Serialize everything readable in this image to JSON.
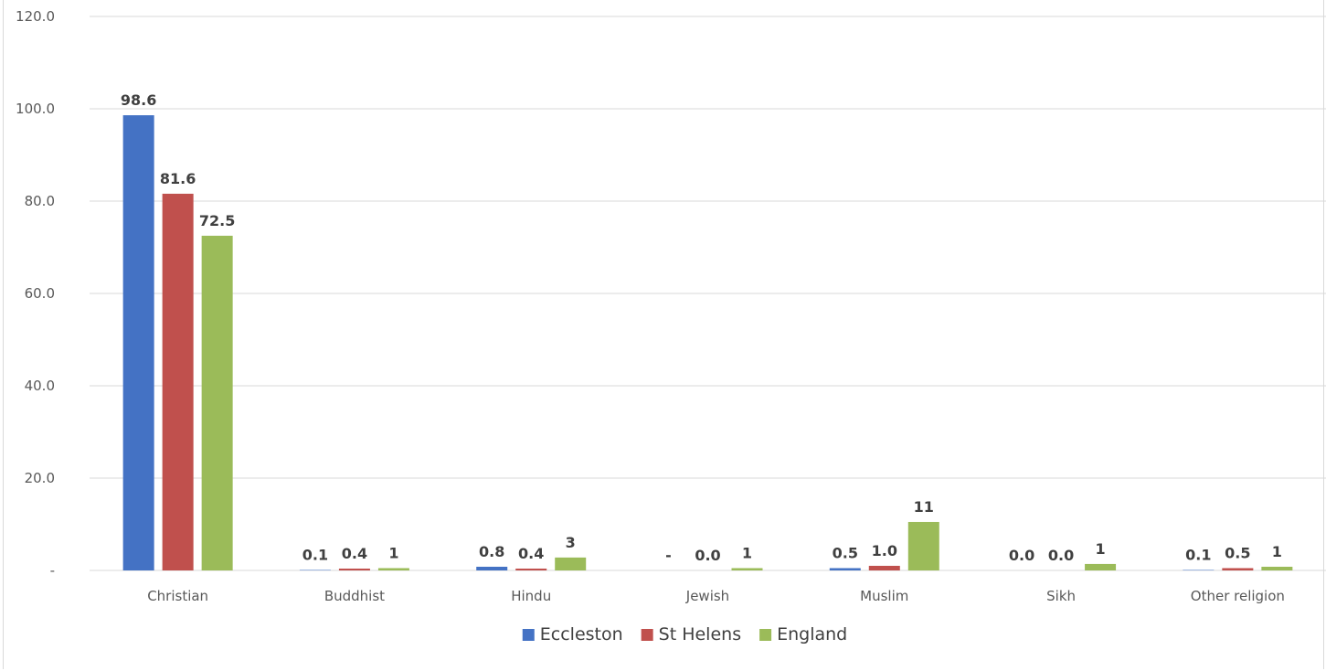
{
  "chart_data": {
    "type": "bar",
    "categories": [
      "Christian",
      "Buddhist",
      "Hindu",
      "Jewish",
      "Muslim",
      "Sikh",
      "Other religion"
    ],
    "series": [
      {
        "name": "Eccleston",
        "color": "#4472c4",
        "values": [
          98.6,
          0.1,
          0.8,
          0,
          0.5,
          0.0,
          0.1
        ],
        "labels": [
          "98.6",
          "0.1",
          "0.8",
          "-",
          "0.5",
          "0.0",
          "0.1"
        ]
      },
      {
        "name": "St Helens",
        "color": "#c0504d",
        "values": [
          81.6,
          0.4,
          0.4,
          0.0,
          1.0,
          0.0,
          0.5
        ],
        "labels": [
          "81.6",
          "0.4",
          "0.4",
          "0.0",
          "1.0",
          "0.0",
          "0.5"
        ]
      },
      {
        "name": "England",
        "color": "#9bbb59",
        "values": [
          72.5,
          0.5,
          2.8,
          0.5,
          10.5,
          1.4,
          0.8
        ],
        "labels": [
          "72.5",
          "1",
          "3",
          "1",
          "11",
          "1",
          "1"
        ]
      }
    ],
    "ylim": [
      0,
      120
    ],
    "yticks": [
      0,
      20,
      40,
      60,
      80,
      100,
      120
    ],
    "ytick_labels": [
      "-",
      "20.0",
      "40.0",
      "60.0",
      "80.0",
      "100.0",
      "120.0"
    ],
    "grid": true,
    "legend": "bottom"
  }
}
